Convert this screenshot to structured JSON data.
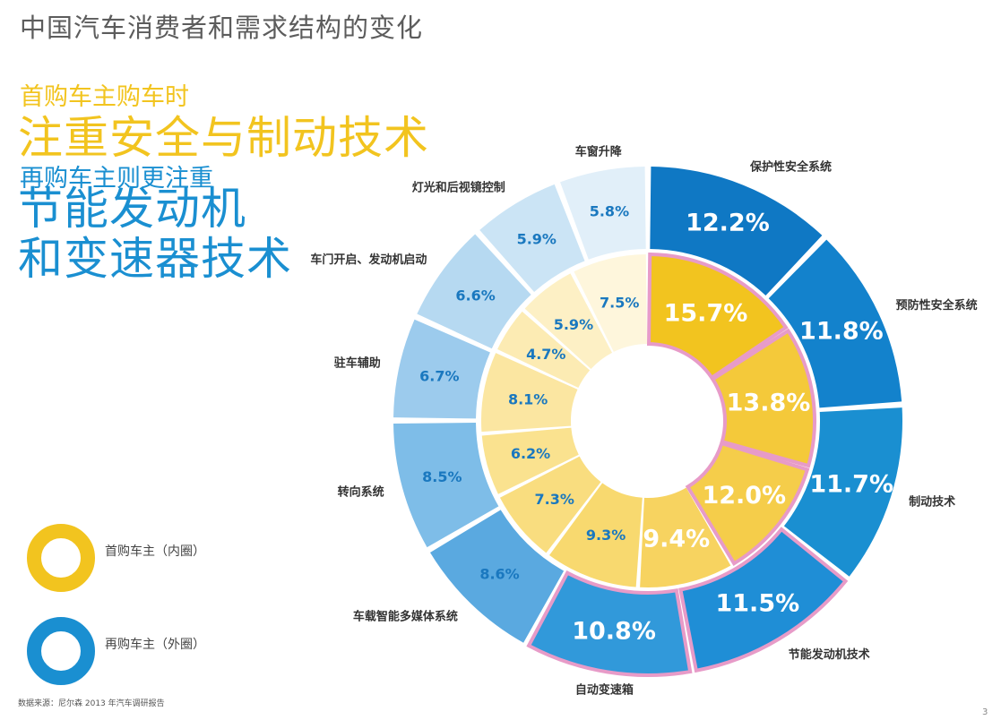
{
  "page_title": "中国汽车消费者和需求结构的变化",
  "headline": {
    "first_buyers_intro": "首购车主购车时",
    "first_buyers_focus": "注重安全与制动技术",
    "repeat_buyers_intro": "再购车主则更注重",
    "repeat_buyers_focus_line1": "节能发动机",
    "repeat_buyers_focus_line2": "和变速器技术"
  },
  "legend": {
    "inner_label": "首购车主（内圈）",
    "outer_label": "再购车主（外圈）"
  },
  "source_note": "数据来源：尼尔森 2013 年汽车调研报告",
  "page_number": "3",
  "colors": {
    "inner_ring": "#f2c41f",
    "outer_ring": "#1a8fd1",
    "highlight_border": "#e79bc8"
  },
  "chart_data": {
    "type": "donut",
    "rings": [
      "inner",
      "outer"
    ],
    "categories": [
      "保护性安全系统",
      "预防性安全系统",
      "制动技术",
      "节能发动机技术",
      "自动变速箱",
      "车载智能多媒体系统",
      "转向系统",
      "驻车辅助",
      "车门开启、发动机启动",
      "灯光和后视镜控制",
      "车窗升降"
    ],
    "series": [
      {
        "name": "首购车主（内圈）",
        "ring": "inner",
        "values": [
          15.7,
          13.8,
          12.0,
          9.4,
          9.3,
          7.3,
          6.2,
          8.1,
          4.7,
          5.9,
          7.5
        ],
        "labels": [
          "15.7%",
          "13.8%",
          "12.0%",
          "9.4%",
          "9.3%",
          "7.3%",
          "6.2%",
          "8.1%",
          "4.7%",
          "5.9%",
          "7.5%"
        ],
        "highlighted": [
          true,
          true,
          true,
          false,
          false,
          false,
          false,
          false,
          false,
          false,
          false
        ]
      },
      {
        "name": "再购车主（外圈）",
        "ring": "outer",
        "values": [
          12.2,
          11.8,
          11.7,
          11.5,
          10.8,
          8.6,
          8.5,
          6.7,
          6.6,
          5.9,
          5.8
        ],
        "labels": [
          "12.2%",
          "11.8%",
          "11.7%",
          "11.5%",
          "10.8%",
          "8.6%",
          "8.5%",
          "6.7%",
          "6.6%",
          "5.9%",
          "5.8%"
        ],
        "highlighted": [
          false,
          false,
          false,
          true,
          true,
          false,
          false,
          false,
          false,
          false,
          false
        ]
      }
    ]
  }
}
